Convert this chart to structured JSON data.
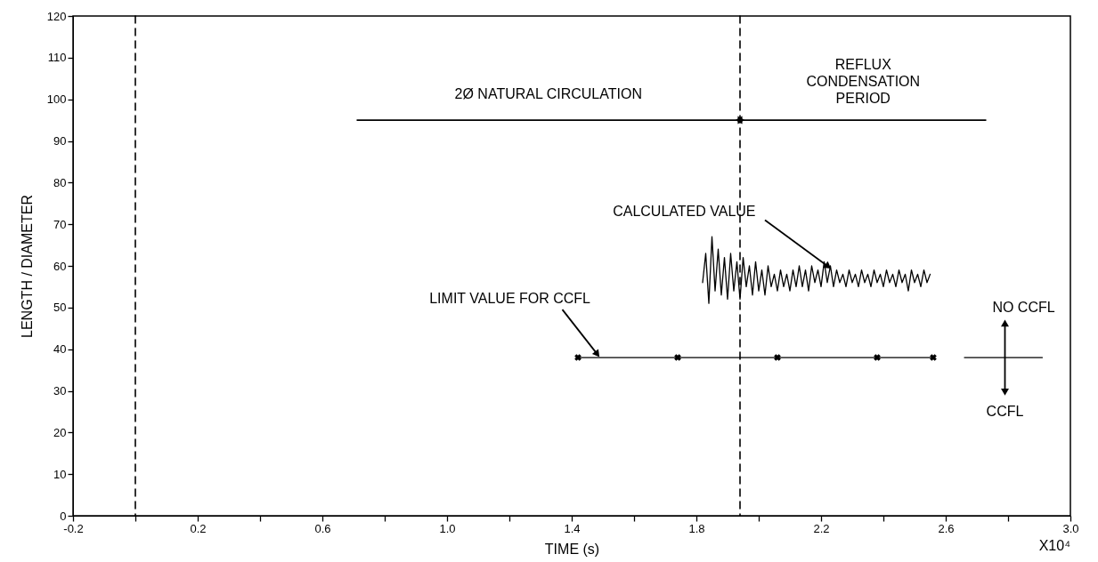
{
  "chart_data": {
    "type": "line",
    "xlabel": "TIME (s)",
    "ylabel": "LENGTH / DIAMETER",
    "xlim": [
      -0.2,
      3.0
    ],
    "ylim": [
      0,
      120
    ],
    "xticks": [
      -0.2,
      {
        "value": 0.0,
        "label": null
      },
      0.2,
      {
        "value": 0.4,
        "label": null
      },
      0.6,
      {
        "value": 0.8,
        "label": null
      },
      {
        "value": 1.0,
        "label": "1.0"
      },
      {
        "value": 1.2,
        "label": null
      },
      1.4,
      {
        "value": 1.6,
        "label": null
      },
      1.8,
      {
        "value": 2.0,
        "label": null
      },
      2.2,
      {
        "value": 2.4,
        "label": null
      },
      2.6,
      {
        "value": 2.8,
        "label": null
      },
      {
        "value": 3.0,
        "label": "3.0"
      }
    ],
    "yticks": [
      0,
      10,
      20,
      30,
      40,
      50,
      60,
      70,
      80,
      90,
      100,
      110,
      120
    ],
    "grid": false,
    "line_style": "solid",
    "series": [
      {
        "color": "#000000",
        "marker": "none",
        "x": [
          1.82,
          1.83,
          1.84,
          1.85,
          1.86,
          1.87,
          1.88,
          1.89,
          1.9,
          1.91,
          1.92,
          1.93,
          1.94,
          1.95,
          1.96,
          1.97,
          1.98,
          1.99,
          2.0,
          2.01,
          2.02,
          2.03,
          2.04,
          2.05,
          2.06,
          2.07,
          2.08,
          2.09,
          2.1,
          2.11,
          2.12,
          2.13,
          2.14,
          2.15,
          2.16,
          2.17,
          2.18,
          2.19,
          2.2,
          2.21,
          2.22,
          2.23,
          2.24,
          2.25,
          2.26,
          2.27,
          2.28,
          2.29,
          2.3,
          2.31,
          2.32,
          2.33,
          2.34,
          2.35,
          2.36,
          2.37,
          2.38,
          2.39,
          2.4,
          2.41,
          2.42,
          2.43,
          2.44,
          2.45,
          2.46,
          2.47,
          2.48,
          2.49,
          2.5,
          2.51,
          2.52,
          2.53,
          2.54,
          2.55
        ],
        "values": [
          56,
          63,
          51,
          67,
          54,
          64,
          53,
          62,
          52,
          63,
          54,
          61,
          52,
          62,
          55,
          60,
          53,
          61,
          54,
          59,
          53,
          60,
          55,
          58,
          54,
          59,
          55,
          58,
          54,
          59,
          55,
          60,
          55,
          59,
          54,
          60,
          56,
          59,
          55,
          61,
          56,
          60,
          55,
          59,
          56,
          58,
          55,
          59,
          56,
          58,
          55,
          59,
          56,
          58,
          55,
          59,
          56,
          58,
          55,
          59,
          56,
          58,
          55,
          59,
          56,
          58,
          54,
          59,
          56,
          58,
          55,
          59,
          56,
          58
        ]
      },
      {
        "color": "#000000",
        "marker": "cross",
        "x": [
          1.42,
          1.74,
          2.06,
          2.38,
          2.56
        ],
        "values": [
          38,
          38,
          38,
          38,
          38
        ]
      },
      {
        "color": "#000000",
        "marker": "none",
        "x": [
          2.66,
          2.91
        ],
        "values": [
          38,
          38
        ]
      }
    ],
    "ref_lines": [
      {
        "axis": "x",
        "value": 0.0,
        "line_style": "dashed",
        "color": "#000000"
      },
      {
        "axis": "x",
        "value": 1.94,
        "line_style": "dashed",
        "color": "#000000"
      }
    ],
    "annotations": [
      "2Ø NATURAL CIRCULATION",
      "REFLUX\nCONDENSATION\nPERIOD",
      {
        "text": "CALCULATED VALUE",
        "x": 2.22,
        "y": 60
      },
      {
        "text": "LIMIT VALUE FOR CCFL",
        "x": 1.48,
        "y": 39
      },
      "NO CCFL",
      "CCFL",
      "X10⁴"
    ]
  }
}
